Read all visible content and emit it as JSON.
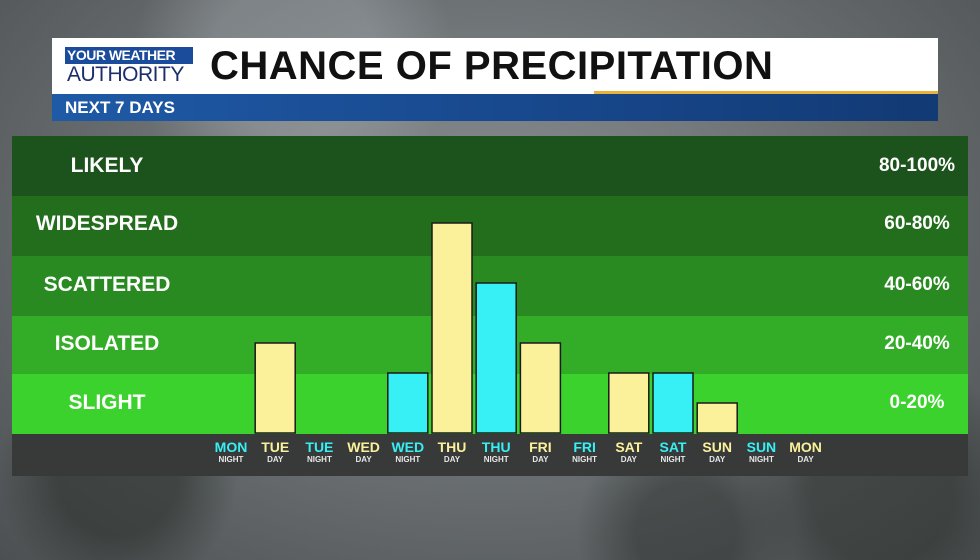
{
  "header": {
    "logo_top": "YOUR WEATHER",
    "logo_bottom": "AUTHORITY",
    "title": "CHANCE OF PRECIPITATION",
    "subtitle": "NEXT 7 DAYS"
  },
  "colors": {
    "day": "#fbf19a",
    "night": "#36f0f5",
    "band_likely": "#1c521c",
    "band_widespread": "#236e1d",
    "band_scattered": "#2a8a22",
    "band_isolated": "#33ac27",
    "band_slight": "#3cd22e"
  },
  "bands": [
    {
      "label": "LIKELY",
      "range": "80-100%"
    },
    {
      "label": "WIDESPREAD",
      "range": "60-80%"
    },
    {
      "label": "SCATTERED",
      "range": "40-60%"
    },
    {
      "label": "ISOLATED",
      "range": "20-40%"
    },
    {
      "label": "SLIGHT",
      "range": "0-20%"
    }
  ],
  "chart_data": {
    "type": "bar",
    "title": "CHANCE OF PRECIPITATION",
    "subtitle": "NEXT 7 DAYS",
    "ylim": [
      0,
      100
    ],
    "categories": [
      {
        "day": "MON",
        "period": "NIGHT",
        "value": 0
      },
      {
        "day": "TUE",
        "period": "DAY",
        "value": 30
      },
      {
        "day": "TUE",
        "period": "NIGHT",
        "value": 0
      },
      {
        "day": "WED",
        "period": "DAY",
        "value": 0
      },
      {
        "day": "WED",
        "period": "NIGHT",
        "value": 20
      },
      {
        "day": "THU",
        "period": "DAY",
        "value": 70
      },
      {
        "day": "THU",
        "period": "NIGHT",
        "value": 50
      },
      {
        "day": "FRI",
        "period": "DAY",
        "value": 30
      },
      {
        "day": "FRI",
        "period": "NIGHT",
        "value": 0
      },
      {
        "day": "SAT",
        "period": "DAY",
        "value": 20
      },
      {
        "day": "SAT",
        "period": "NIGHT",
        "value": 20
      },
      {
        "day": "SUN",
        "period": "DAY",
        "value": 10
      },
      {
        "day": "SUN",
        "period": "NIGHT",
        "value": 0
      },
      {
        "day": "MON",
        "period": "DAY",
        "value": 0
      }
    ]
  }
}
